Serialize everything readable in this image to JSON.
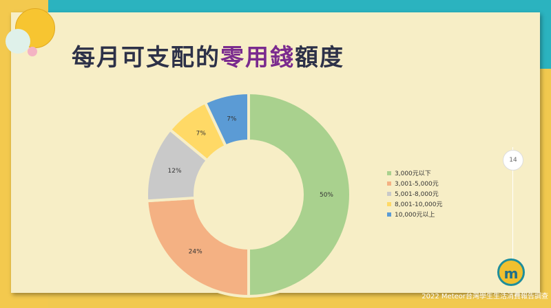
{
  "slide": {
    "title_part1": "每月可支配的",
    "title_highlight": "零用錢",
    "title_part2": "額度",
    "page_number": "14",
    "logo_text": "m",
    "footer": "2022 Meteor台灣學生生活消費報告調查"
  },
  "colors": {
    "teal": "#2bb3bf",
    "yellow": "#f3c94e",
    "slide_bg": "#f7eec6",
    "title": "#2d3148",
    "highlight": "#7a2a8e"
  },
  "chart_data": {
    "type": "pie",
    "variant": "donut",
    "legend_position": "right",
    "series": [
      {
        "name": "3,000元以下",
        "value": 50,
        "label": "50%",
        "color": "#a9d18e"
      },
      {
        "name": "3,001-5,000元",
        "value": 24,
        "label": "24%",
        "color": "#f4b183"
      },
      {
        "name": "5,001-8,000元",
        "value": 12,
        "label": "12%",
        "color": "#c9c9c9"
      },
      {
        "name": "8,001-10,000元",
        "value": 7,
        "label": "7%",
        "color": "#ffd966"
      },
      {
        "name": "10,000元以上",
        "value": 7,
        "label": "7%",
        "color": "#5b9bd5"
      }
    ]
  }
}
